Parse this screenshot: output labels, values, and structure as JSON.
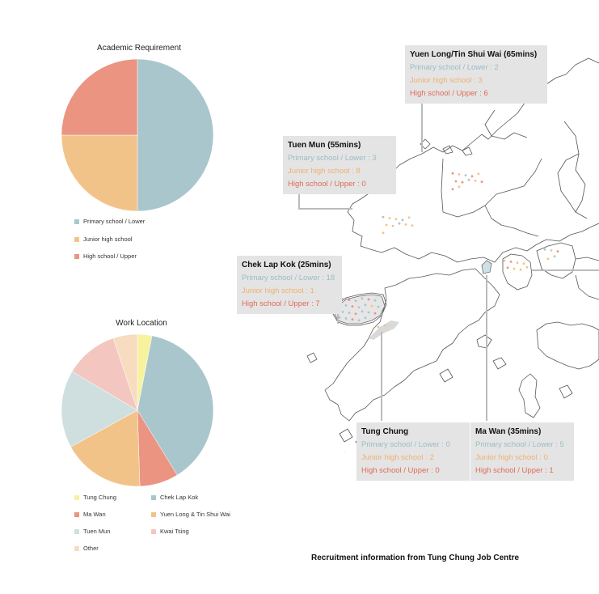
{
  "colors": {
    "primary": "#a9c6cd",
    "junior": "#f2c389",
    "high": "#eb9482",
    "tung_chung": "#f7f29e",
    "chek_lap_kok": "#a9c6cd",
    "ma_wan": "#eb9482",
    "yuen_long": "#f2c389",
    "tuen_mun": "#cfdfe0",
    "kwai_tsing": "#f3c7c0",
    "other": "#f7dcc0",
    "box_bg": "#e4e4e4"
  },
  "academic_chart": {
    "title": "Academic Requirement",
    "legend": [
      {
        "label": "Primary school / Lower",
        "color_key": "primary"
      },
      {
        "label": "Junior high school",
        "color_key": "junior"
      },
      {
        "label": "High school / Upper",
        "color_key": "high"
      }
    ]
  },
  "location_chart": {
    "title": "Work Location",
    "legend": [
      {
        "label": "Tung Chung",
        "color_key": "tung_chung"
      },
      {
        "label": "Chek Lap Kok",
        "color_key": "chek_lap_kok"
      },
      {
        "label": "Ma Wan",
        "color_key": "ma_wan"
      },
      {
        "label": "Yuen Long & Tin Shui Wai",
        "color_key": "yuen_long"
      },
      {
        "label": "Tuen Mun",
        "color_key": "tuen_mun"
      },
      {
        "label": "Kwai Tsing",
        "color_key": "kwai_tsing"
      },
      {
        "label": "Other",
        "color_key": "other"
      }
    ]
  },
  "chart_data": [
    {
      "type": "pie",
      "title": "Academic Requirement",
      "categories": [
        "Primary school / Lower",
        "Junior high school",
        "High school / Upper"
      ],
      "values": [
        50,
        25,
        25
      ],
      "legend": "bottom-left"
    },
    {
      "type": "pie",
      "title": "Work Location",
      "categories": [
        "Tung Chung",
        "Chek Lap Kok",
        "Ma Wan",
        "Yuen Long & Tin Shui Wai",
        "Tuen Mun",
        "Kwai Tsing",
        "Other"
      ],
      "values": [
        3,
        37,
        8,
        17,
        16,
        11,
        5
      ],
      "legend": "bottom-left"
    }
  ],
  "locations": [
    {
      "name": "Yuen Long/Tin Shui Wai (65mins)",
      "primary": "Primary school / Lower : 2",
      "junior": "Junior high school : 3",
      "high": "High school / Upper : 6"
    },
    {
      "name": "Tuen Mun (55mins)",
      "primary": "Primary school / Lower : 3",
      "junior": "Junior high school : 8",
      "high": "High school / Upper : 0"
    },
    {
      "name": "Chek Lap Kok (25mins)",
      "primary": "Primary school / Lower : 18",
      "junior": "Junior high school : 1",
      "high": "High school / Upper : 7"
    },
    {
      "name": "Tung Chung",
      "primary": "Primary school / Lower : 0",
      "junior": "Junior high school : 2",
      "high": "High school / Upper : 0"
    },
    {
      "name": "Ma Wan (35mins)",
      "primary": "Primary school / Lower : 5",
      "junior": "Junior high school : 0",
      "high": "High school / Upper : 1"
    }
  ],
  "caption": "Recruitment information from Tung Chung Job Centre"
}
